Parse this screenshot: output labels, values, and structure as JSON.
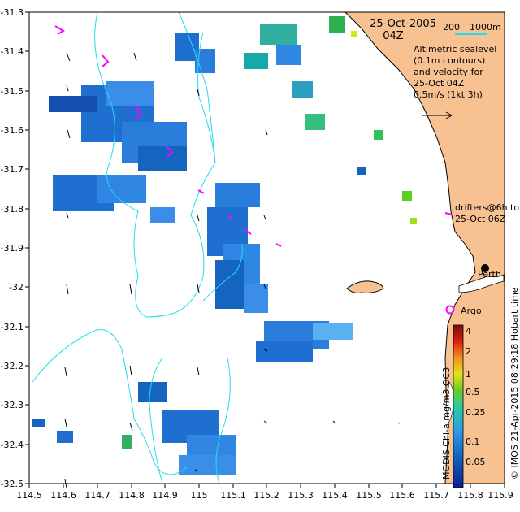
{
  "title": {
    "date": "25-Oct-2005",
    "time": "04Z"
  },
  "depth_legend": {
    "label_a": "200",
    "label_b": "1000m"
  },
  "description": [
    "Altimetric sealevel",
    "(0.1m contours)",
    "and velocity for",
    "25-Oct 04Z",
    "0.5m/s (1kt 3h)"
  ],
  "drifters": {
    "line1": "drifters@6h to",
    "line2": "25-Oct 06Z"
  },
  "places": {
    "city": "Perth",
    "float": "Argo"
  },
  "colorbar": {
    "title": "MODIS Chl-a mg/m3 OC3",
    "ticks": [
      "4",
      "2",
      "1",
      "0.5",
      "0.25",
      "0.1",
      "0.05"
    ]
  },
  "credit": "© IMOS 21-Apr-2015 08:29:18 Hobart time",
  "x_ticks": [
    "114.5",
    "114.6",
    "114.7",
    "114.8",
    "114.9",
    "115",
    "115.1",
    "115.2",
    "115.3",
    "115.4",
    "115.5",
    "115.6",
    "115.7",
    "115.8",
    "115.9"
  ],
  "y_ticks": [
    "-31.3",
    "-31.4",
    "-31.5",
    "-31.6",
    "-31.7",
    "-31.8",
    "-31.9",
    "-32",
    "-32.1",
    "-32.2",
    "-32.3",
    "-32.4",
    "-32.5"
  ],
  "colors": {
    "land": "#F7C191",
    "contour": "#22DDEE",
    "drifter": "#FF00FF",
    "chl_low": "#1565C0",
    "chl_mid": "#3A8EE8"
  }
}
